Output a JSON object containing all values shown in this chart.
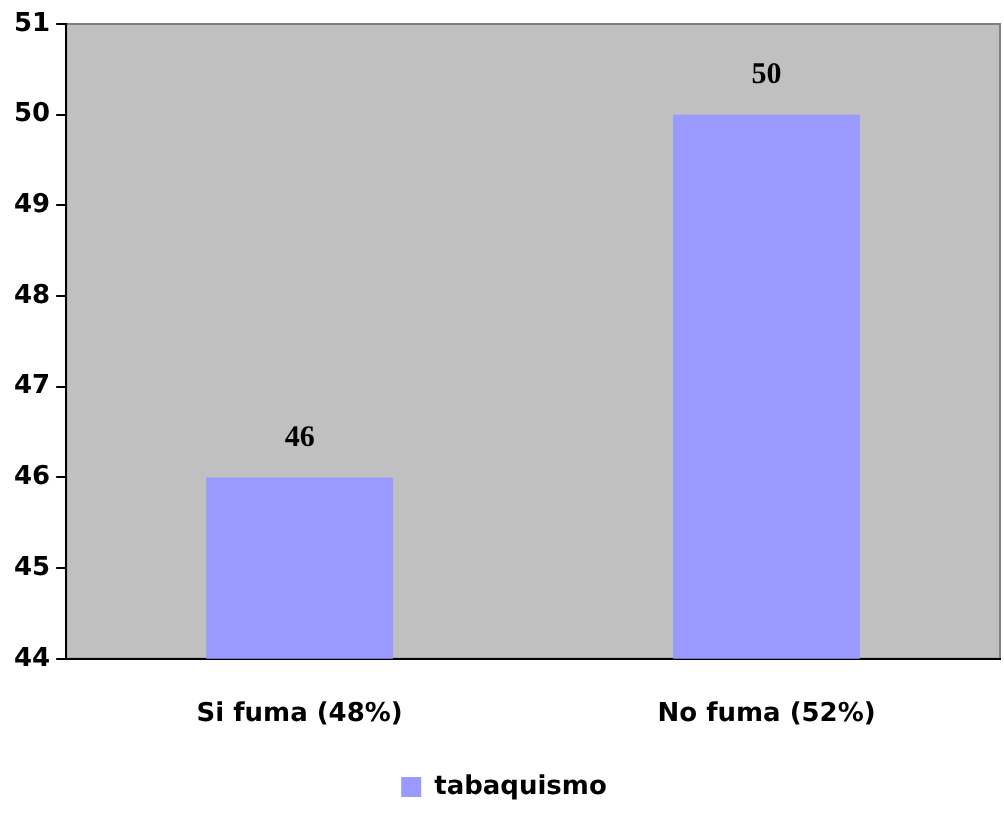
{
  "chart_data": {
    "type": "bar",
    "categories": [
      "Si fuma (48%)",
      "No fuma (52%)"
    ],
    "series": [
      {
        "name": "tabaquismo",
        "color": "#9999ff",
        "values": [
          46,
          50
        ]
      }
    ],
    "ylim": [
      44,
      51
    ],
    "yticks": [
      44,
      45,
      46,
      47,
      48,
      49,
      50,
      51
    ],
    "grid": false,
    "legend": "bottom",
    "data_labels": true
  }
}
